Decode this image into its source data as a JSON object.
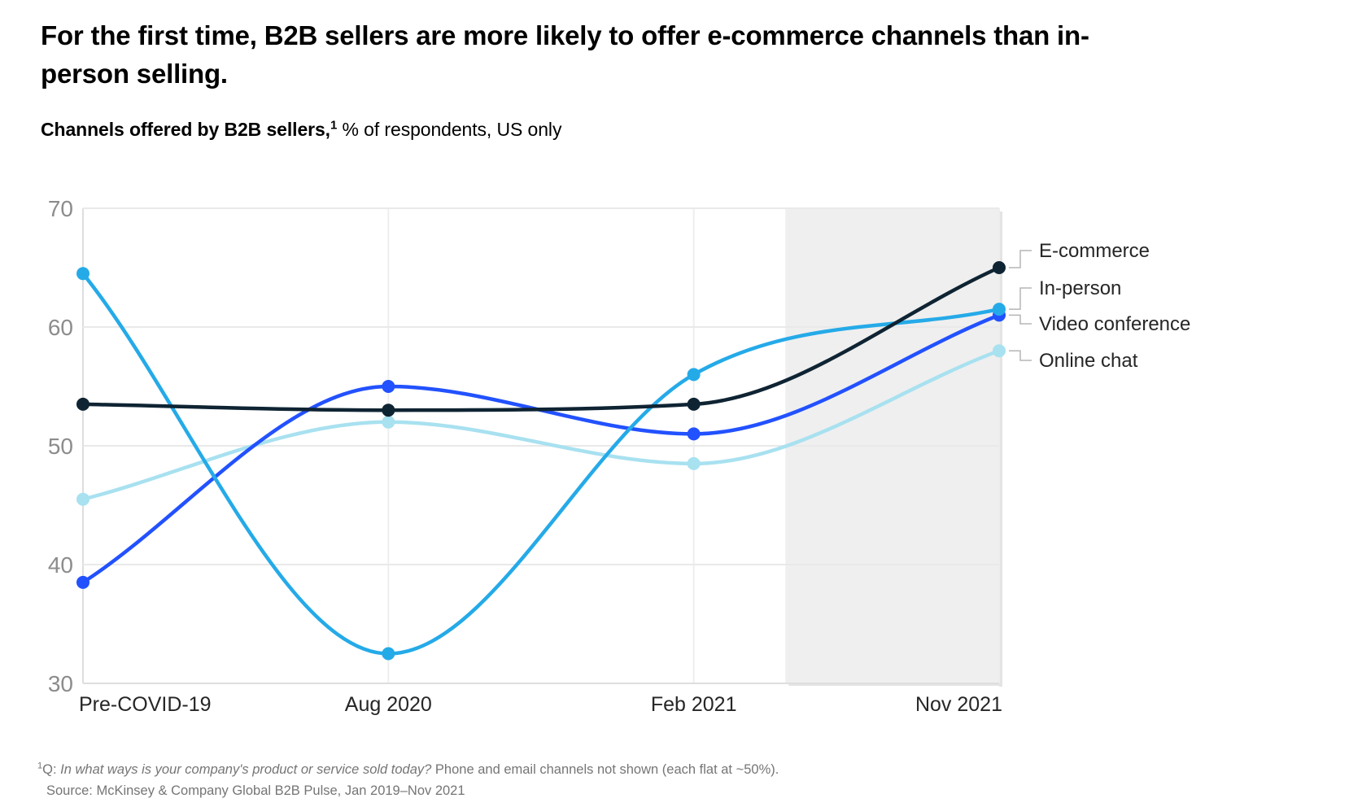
{
  "header": {
    "title": "For the first time, B2B sellers are more likely to offer e-commerce channels than in-person selling.",
    "subtitle_bold": "Channels offered by B2B sellers,",
    "subtitle_sup": "1",
    "subtitle_rest": " % of respondents, US only"
  },
  "chart_data": {
    "type": "line",
    "categories": [
      "Pre-COVID-19",
      "Aug 2020",
      "Feb 2021",
      "Nov 2021"
    ],
    "series": [
      {
        "name": "E-commerce",
        "color": "#0f2433",
        "values": [
          53.5,
          53.0,
          53.5,
          65.0
        ]
      },
      {
        "name": "In-person",
        "color": "#25aae8",
        "values": [
          64.5,
          32.5,
          56.0,
          61.5
        ]
      },
      {
        "name": "Video conference",
        "color": "#2251ff",
        "values": [
          38.5,
          55.0,
          51.0,
          61.0
        ]
      },
      {
        "name": "Online chat",
        "color": "#a8e1f0",
        "values": [
          45.5,
          52.0,
          48.5,
          58.0
        ]
      }
    ],
    "yticks": [
      70,
      60,
      50,
      40,
      30
    ],
    "ylim": [
      30,
      70
    ],
    "grid": true,
    "legend_position": "right",
    "highlight_band": {
      "from_x": 2.3,
      "to_x": 3,
      "color": "#efefef"
    },
    "colors": {
      "gridline": "#e9e9e9",
      "axis_line": "#dedede",
      "y_tick_text": "#8c8c8c",
      "x_tick_text": "#262626",
      "legend_text": "#262626",
      "connector": "#b5b5b5",
      "band_shadow": "#e4e4e4"
    }
  },
  "footnote": {
    "sup": "1",
    "prefix": "Q: ",
    "question_italic": "In what ways is your company's product or service sold today?",
    "rest": " Phone and email channels not shown (each flat at ~50%).",
    "source": "Source: McKinsey & Company Global B2B Pulse, Jan 2019–Nov 2021"
  }
}
